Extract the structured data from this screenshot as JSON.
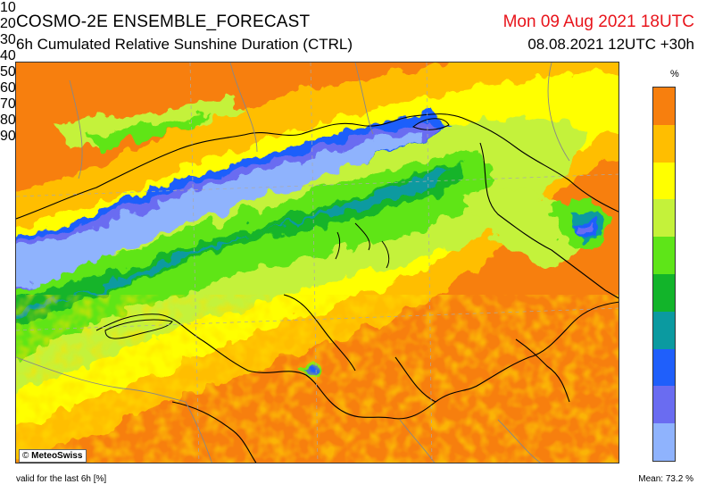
{
  "header": {
    "title_line1": "COSMO-2E ENSEMBLE_FORECAST",
    "title_line2": "6h Cumulated Relative Sunshine Duration (CTRL)",
    "valid_time": "Mon 09 Aug 2021 18UTC",
    "run_info": "08.08.2021 12UTC +30h"
  },
  "map": {
    "copyright_symbol": "©",
    "copyright_text": "MeteoSwiss"
  },
  "legend": {
    "unit": "%",
    "levels": [
      {
        "from": 0,
        "to": 10,
        "color": "#8fb3fd"
      },
      {
        "from": 10,
        "to": 20,
        "color": "#6a6cf1"
      },
      {
        "from": 20,
        "to": 30,
        "color": "#1f5ffb"
      },
      {
        "from": 30,
        "to": 40,
        "color": "#0b9aa0"
      },
      {
        "from": 40,
        "to": 50,
        "color": "#12b42a"
      },
      {
        "from": 50,
        "to": 60,
        "color": "#5ee518"
      },
      {
        "from": 60,
        "to": 70,
        "color": "#c4f23a"
      },
      {
        "from": 70,
        "to": 80,
        "color": "#ffff00"
      },
      {
        "from": 80,
        "to": 90,
        "color": "#ffbe00"
      },
      {
        "from": 90,
        "to": 100,
        "color": "#f77f0e"
      }
    ],
    "tick_labels": [
      "10",
      "20",
      "30",
      "40",
      "50",
      "60",
      "70",
      "80",
      "90"
    ]
  },
  "footer": {
    "validity": "valid for the last 6h [%]",
    "mean": "Mean:  73.2 %"
  }
}
